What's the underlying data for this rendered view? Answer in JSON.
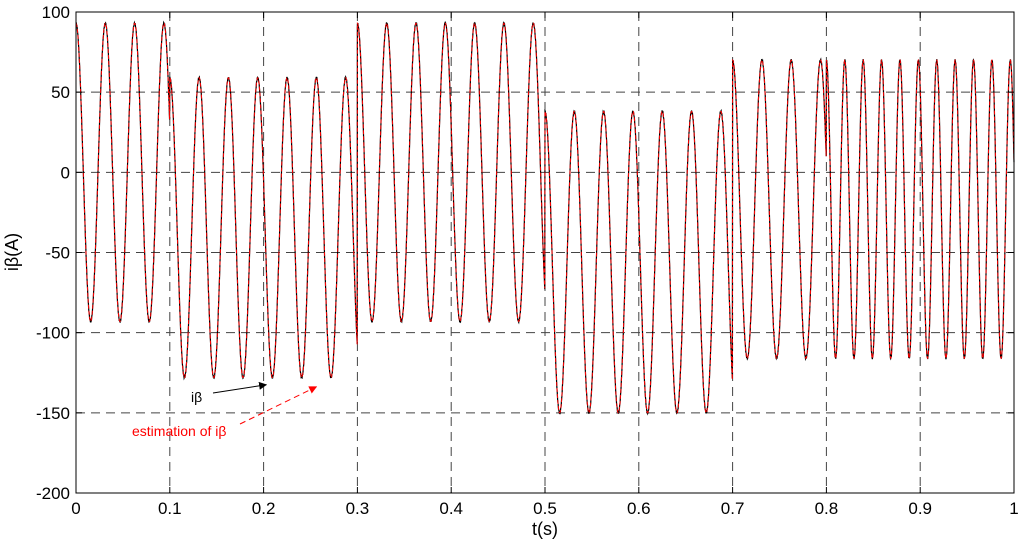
{
  "chart_data": {
    "type": "line",
    "xlabel": "t(s)",
    "ylabel": "iβ(A)",
    "xlim": [
      0,
      1
    ],
    "ylim": [
      -200,
      100
    ],
    "x_ticks": [
      0,
      0.1,
      0.2,
      0.3,
      0.4,
      0.5,
      0.6,
      0.7,
      0.8,
      0.9,
      1
    ],
    "x_tick_labels": [
      "0",
      "0.1",
      "0.2",
      "0.3",
      "0.4",
      "0.5",
      "0.6",
      "0.7",
      "0.8",
      "0.9",
      "1"
    ],
    "y_ticks": [
      -200,
      -150,
      -100,
      -50,
      0,
      50,
      100
    ],
    "y_tick_labels": [
      "-200",
      "-150",
      "-100",
      "-50",
      "0",
      "50",
      "100"
    ],
    "grid": true,
    "series": [
      {
        "name": "iβ",
        "color": "#000000"
      },
      {
        "name": "estimation of iβ",
        "color": "#ff0000"
      }
    ],
    "segments": [
      {
        "t_start": 0.0,
        "t_end": 0.1,
        "max": 93,
        "min": -93,
        "freq_hz": 32
      },
      {
        "t_start": 0.1,
        "t_end": 0.3,
        "max": 59,
        "min": -128,
        "freq_hz": 32
      },
      {
        "t_start": 0.3,
        "t_end": 0.5,
        "max": 93,
        "min": -93,
        "freq_hz": 32
      },
      {
        "t_start": 0.5,
        "t_end": 0.7,
        "max": 38,
        "min": -150,
        "freq_hz": 32
      },
      {
        "t_start": 0.7,
        "t_end": 0.8,
        "max": 70,
        "min": -116,
        "freq_hz": 32
      },
      {
        "t_start": 0.8,
        "t_end": 1.0,
        "max": 70,
        "min": -116,
        "freq_hz": 51
      }
    ],
    "annotations": [
      {
        "text": "iβ",
        "color": "#000000",
        "target": {
          "x": 0.205,
          "y": -130
        }
      },
      {
        "text": "estimation of iβ",
        "color": "#ff0000",
        "target": {
          "x": 0.235,
          "y": -130
        }
      }
    ]
  }
}
